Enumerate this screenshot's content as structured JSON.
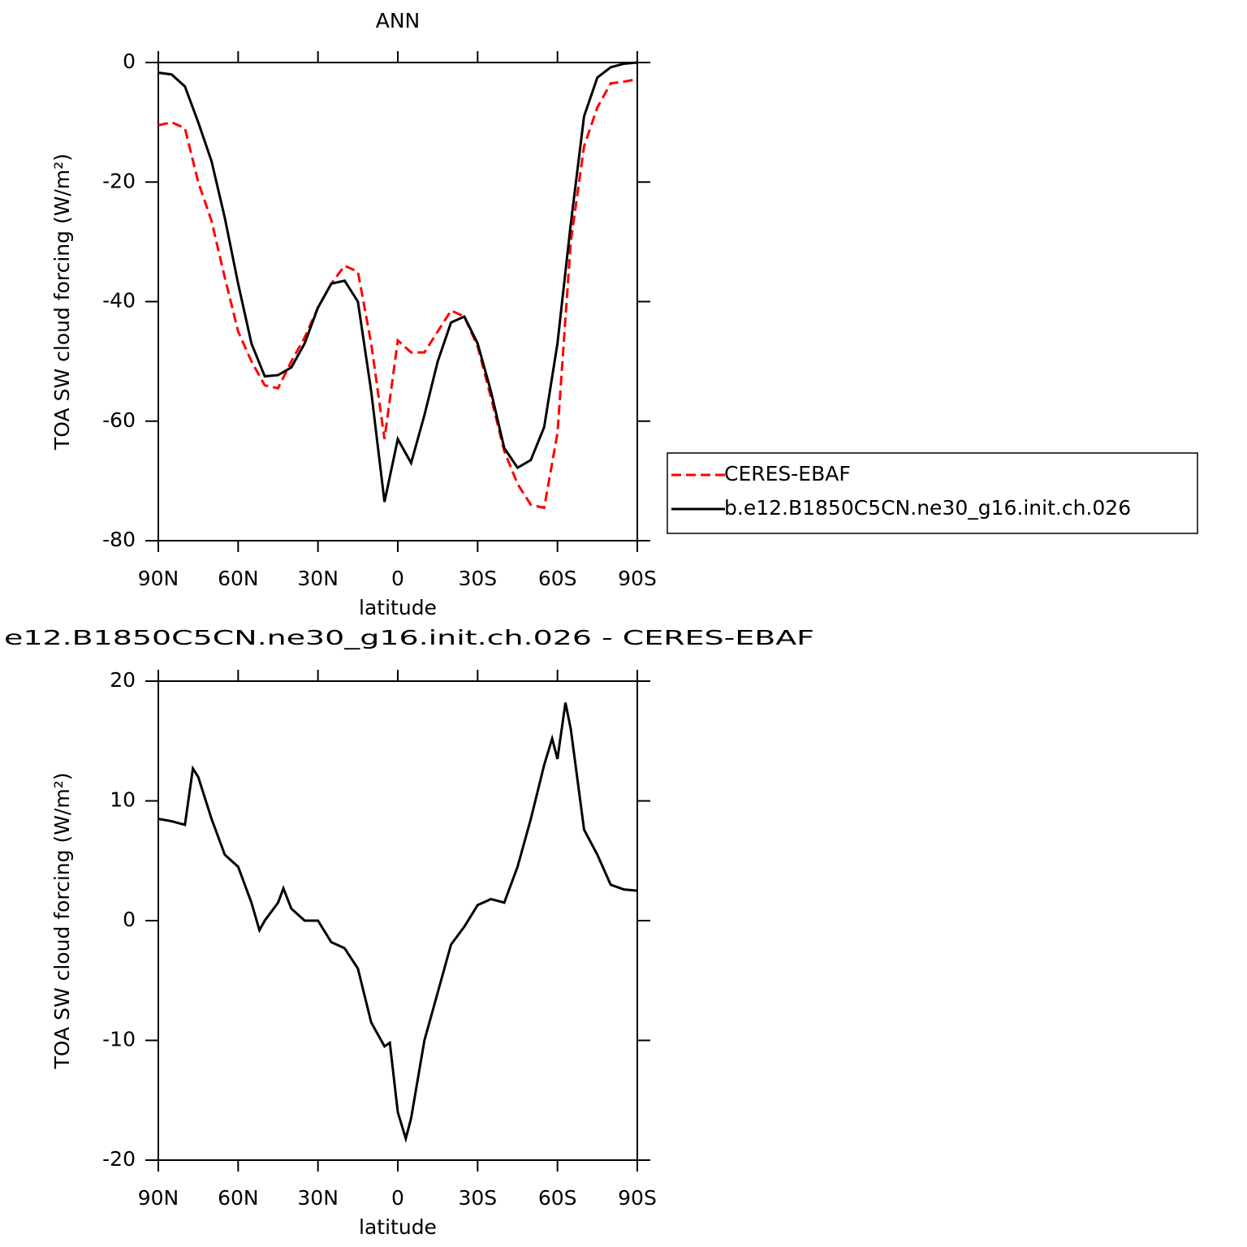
{
  "chart_data": [
    {
      "type": "line",
      "title": "ANN",
      "x_label": "latitude",
      "y_label": "TOA SW cloud forcing (W/m²)",
      "xlim": [
        90,
        -90
      ],
      "ylim": [
        -80,
        0
      ],
      "xticks": [
        {
          "value": 90,
          "label": "90N"
        },
        {
          "value": 60,
          "label": "60N"
        },
        {
          "value": 30,
          "label": "30N"
        },
        0,
        {
          "value": -30,
          "label": "30S"
        },
        {
          "value": -60,
          "label": "60S"
        },
        {
          "value": -90,
          "label": "90S"
        }
      ],
      "yticks": [
        -80,
        -60,
        -40,
        -20,
        0
      ],
      "legend": "right",
      "x": [
        90,
        85,
        80,
        75,
        70,
        65,
        60,
        55,
        50,
        45,
        40,
        35,
        30,
        25,
        20,
        15,
        10,
        5,
        0,
        -5,
        -10,
        -15,
        -20,
        -25,
        -30,
        -35,
        -40,
        -45,
        -50,
        -55,
        -60,
        -65,
        -70,
        -75,
        -80,
        -85,
        -90
      ],
      "series": [
        {
          "name": "CERES-EBAF",
          "color": "#ff0000",
          "dashed": true,
          "values": [
            -10.5,
            -10,
            -11,
            -20,
            -26.5,
            -36,
            -45,
            -50,
            -54,
            -54.5,
            -50,
            -46,
            -41,
            -37,
            -34,
            -35,
            -47,
            -63,
            -46.5,
            -48.5,
            -48.5,
            -45,
            -41.5,
            -42.5,
            -47.5,
            -56,
            -65,
            -70.5,
            -74,
            -74.5,
            -62,
            -30,
            -14,
            -7.5,
            -3.5,
            -3.2,
            -2.8
          ]
        },
        {
          "name": "b.e12.B1850C5CN.ne30_g16.init.ch.026",
          "color": "#000000",
          "dashed": false,
          "values": [
            -1.7,
            -2,
            -4,
            -10,
            -16.5,
            -26,
            -37,
            -47,
            -52.5,
            -52.3,
            -51,
            -47,
            -41,
            -37,
            -36.5,
            -40,
            -55,
            -73.5,
            -63,
            -67,
            -59,
            -50,
            -43.5,
            -42.5,
            -47,
            -55,
            -64.5,
            -67.8,
            -66.5,
            -61,
            -47,
            -27,
            -9,
            -2.5,
            -0.8,
            -0.2,
            0
          ]
        }
      ]
    },
    {
      "type": "line",
      "title": "e12.B1850C5CN.ne30_g16.init.ch.026 - CERES-EBAF",
      "x_label": "latitude",
      "y_label": "TOA SW cloud forcing (W/m²)",
      "xlim": [
        90,
        -90
      ],
      "ylim": [
        -20,
        20
      ],
      "xticks": [
        {
          "value": 90,
          "label": "90N"
        },
        {
          "value": 60,
          "label": "60N"
        },
        {
          "value": 30,
          "label": "30N"
        },
        0,
        {
          "value": -30,
          "label": "30S"
        },
        {
          "value": -60,
          "label": "60S"
        },
        {
          "value": -90,
          "label": "90S"
        }
      ],
      "yticks": [
        -20,
        -10,
        0,
        10,
        20
      ],
      "x": [
        90,
        85,
        80,
        77,
        75,
        70,
        65,
        60,
        55,
        52,
        50,
        45,
        43,
        40,
        35,
        30,
        25,
        20,
        15,
        10,
        5,
        3,
        0,
        -3,
        -5,
        -10,
        -15,
        -20,
        -25,
        -30,
        -35,
        -40,
        -45,
        -50,
        -55,
        -58,
        -60,
        -63,
        -65,
        -70,
        -75,
        -80,
        -85,
        -90
      ],
      "series": [
        {
          "color": "#000000",
          "values": [
            8.5,
            8.3,
            8,
            12.7,
            12,
            8.5,
            5.5,
            4.5,
            1.5,
            -0.8,
            0,
            1.5,
            2.7,
            1,
            0,
            0,
            -1.8,
            -2.3,
            -4,
            -8.5,
            -10.5,
            -10.2,
            -16,
            -18.2,
            -16.5,
            -10,
            -6,
            -2,
            -0.5,
            1.3,
            1.8,
            1.5,
            4.5,
            8.5,
            13,
            15.2,
            13.5,
            18.2,
            16,
            7.6,
            5.5,
            3,
            2.6,
            2.5
          ]
        }
      ]
    }
  ]
}
